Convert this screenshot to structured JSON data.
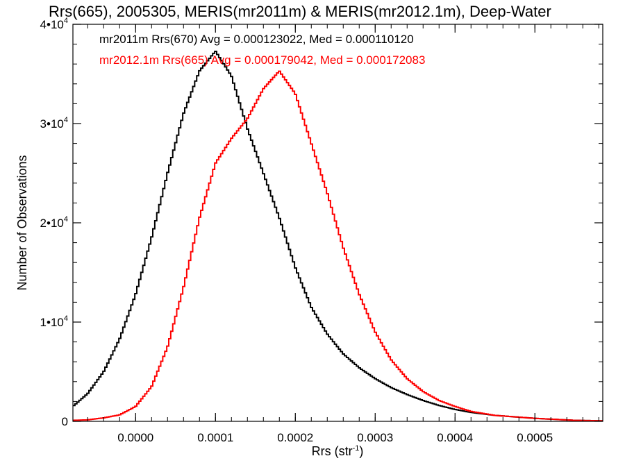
{
  "chart_data": {
    "type": "line",
    "title": "Rrs(665), 2005305, MERIS(mr2011m) & MERIS(mr2012.1m), Deep-Water",
    "xlabel": "Rrs (str",
    "xlabel_sup": "-1",
    "xlabel_end": ")",
    "ylabel": "Number of Observations",
    "xlim": [
      -7.85e-05,
      0.000585
    ],
    "ylim": [
      0,
      40000
    ],
    "x_ticks": [
      0.0,
      0.0001,
      0.0002,
      0.0003,
      0.0004,
      0.0005
    ],
    "x_tick_labels": [
      "0.0000",
      "0.0001",
      "0.0002",
      "0.0003",
      "0.0004",
      "0.0005"
    ],
    "y_ticks": [
      {
        "value": 0,
        "mantissa": "0",
        "exponent": ""
      },
      {
        "value": 10000,
        "mantissa": "1•10",
        "exponent": "4"
      },
      {
        "value": 20000,
        "mantissa": "2•10",
        "exponent": "4"
      },
      {
        "value": 30000,
        "mantissa": "3•10",
        "exponent": "4"
      },
      {
        "value": 40000,
        "mantissa": "4•10",
        "exponent": "4"
      }
    ],
    "annotations": [
      {
        "text": "mr2011m Rrs(670) Avg = 0.000123022, Med = 0.000110120",
        "color": "#000000"
      },
      {
        "text": "mr2012.1m Rrs(665) Avg = 0.000179042, Med = 0.000172083",
        "color": "#ff0000"
      }
    ],
    "series": [
      {
        "color": "#000000",
        "points": [
          [
            -7.85e-05,
            1500
          ],
          [
            -6e-05,
            2800
          ],
          [
            -4e-05,
            5000
          ],
          [
            -2e-05,
            8300
          ],
          [
            0.0,
            12800
          ],
          [
            2e-05,
            18500
          ],
          [
            4e-05,
            25000
          ],
          [
            6e-05,
            31000
          ],
          [
            8e-05,
            35300
          ],
          [
            0.0001,
            37300
          ],
          [
            0.00012,
            34800
          ],
          [
            0.00014,
            29500
          ],
          [
            0.00016,
            25000
          ],
          [
            0.00018,
            20500
          ],
          [
            0.0002,
            15500
          ],
          [
            0.00022,
            11500
          ],
          [
            0.00024,
            8800
          ],
          [
            0.00026,
            6800
          ],
          [
            0.00028,
            5400
          ],
          [
            0.0003,
            4300
          ],
          [
            0.00032,
            3400
          ],
          [
            0.00034,
            2700
          ],
          [
            0.00036,
            2100
          ],
          [
            0.00038,
            1600
          ],
          [
            0.0004,
            1200
          ],
          [
            0.00042,
            900
          ],
          [
            0.00045,
            600
          ],
          [
            0.0005,
            300
          ],
          [
            0.00055,
            100
          ],
          [
            0.000585,
            50
          ]
        ]
      },
      {
        "color": "#ff0000",
        "points": [
          [
            -7.85e-05,
            100
          ],
          [
            -6e-05,
            150
          ],
          [
            -4e-05,
            350
          ],
          [
            -2e-05,
            650
          ],
          [
            0.0,
            1500
          ],
          [
            2e-05,
            3500
          ],
          [
            4e-05,
            7500
          ],
          [
            6e-05,
            13500
          ],
          [
            8e-05,
            20500
          ],
          [
            0.0001,
            26000
          ],
          [
            0.00012,
            28500
          ],
          [
            0.00014,
            30500
          ],
          [
            0.00016,
            33500
          ],
          [
            0.00018,
            35300
          ],
          [
            0.0002,
            33000
          ],
          [
            0.00022,
            28000
          ],
          [
            0.00024,
            23000
          ],
          [
            0.00026,
            17500
          ],
          [
            0.00028,
            12800
          ],
          [
            0.0003,
            9000
          ],
          [
            0.00032,
            6200
          ],
          [
            0.00034,
            4300
          ],
          [
            0.00036,
            3000
          ],
          [
            0.00038,
            2100
          ],
          [
            0.0004,
            1500
          ],
          [
            0.00042,
            1000
          ],
          [
            0.00045,
            600
          ],
          [
            0.0005,
            300
          ],
          [
            0.00055,
            100
          ],
          [
            0.000585,
            50
          ]
        ]
      }
    ]
  }
}
